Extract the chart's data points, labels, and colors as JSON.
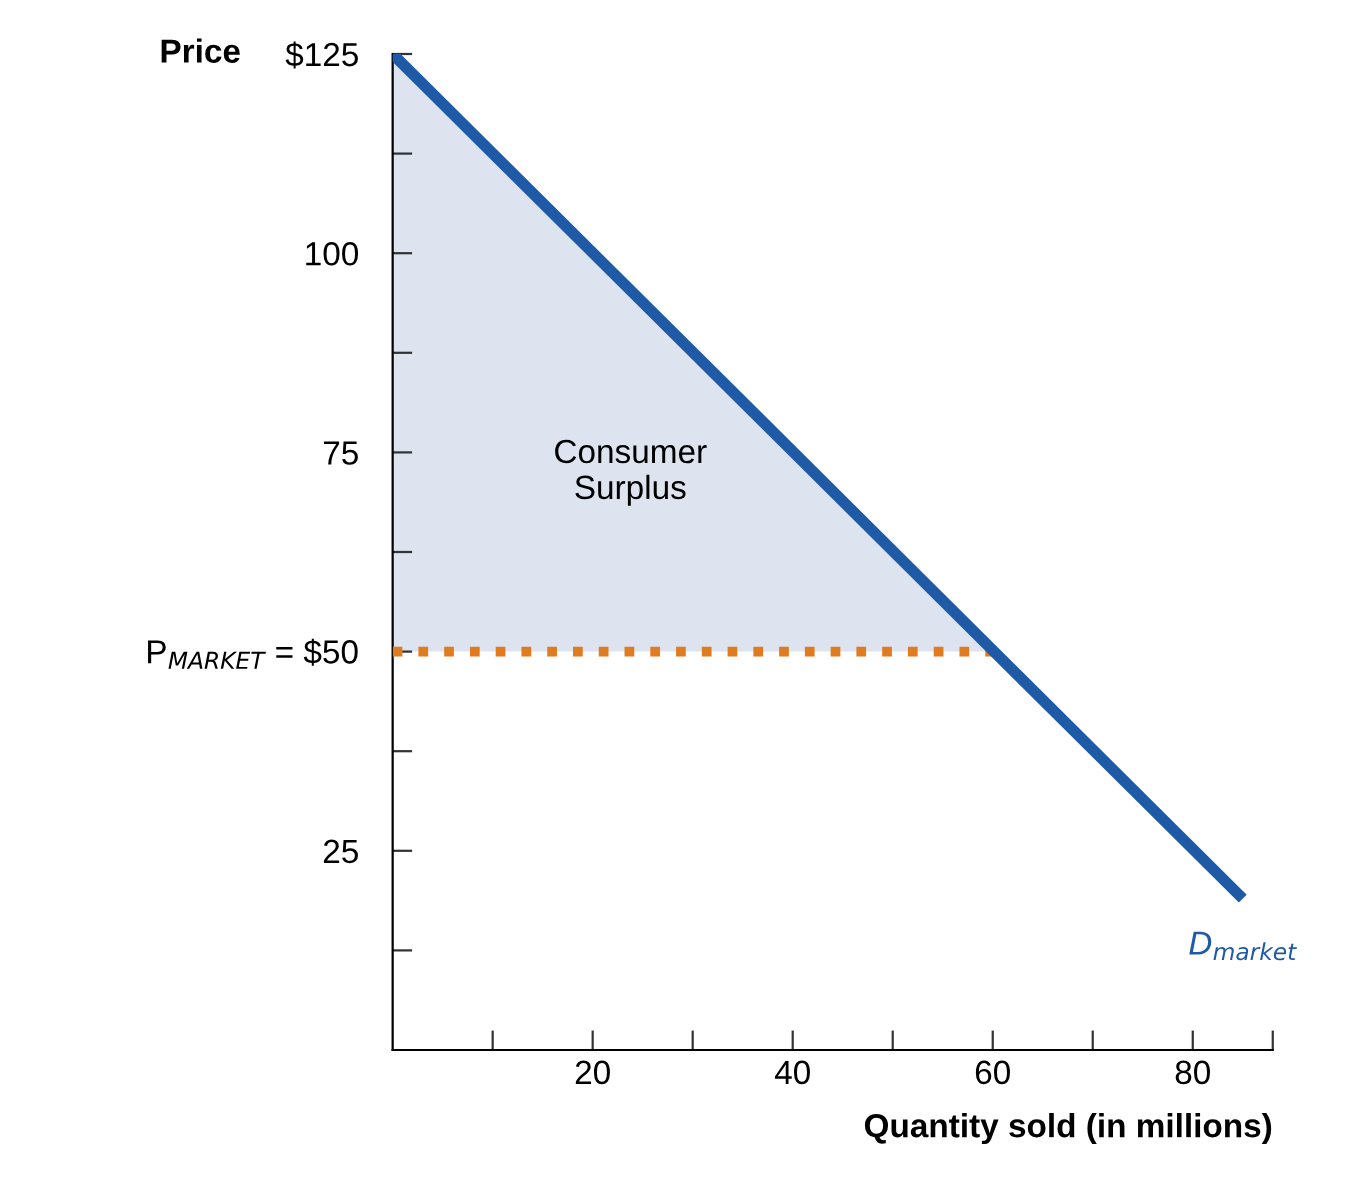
{
  "chart_data": {
    "type": "line",
    "xlabel": "Quantity sold (in millions)",
    "ylabel": "Price",
    "series": [
      {
        "type": "area",
        "color": "#dde4f0",
        "x": [
          0,
          60
        ],
        "values": [
          125,
          50
        ]
      },
      {
        "color": "#e07b20",
        "x": [
          0,
          60
        ],
        "values": [
          50,
          50
        ],
        "line_style": "dotted"
      },
      {
        "name": "D$_{market}$",
        "color": "#1f5aa6",
        "x": [
          0,
          85
        ],
        "values": [
          125,
          19
        ],
        "line_style": "solid"
      }
    ],
    "annotations": [
      "Consumer\nSurplus"
    ],
    "xlim": [
      0,
      88
    ],
    "ylim": [
      0,
      125
    ],
    "xticks": [
      {
        "value": 10,
        "label": null
      },
      20,
      {
        "value": 30,
        "label": null
      },
      40,
      {
        "value": 50,
        "label": null
      },
      60,
      {
        "value": 70,
        "label": null
      },
      80,
      {
        "value": 88,
        "label": null
      }
    ],
    "yticks": [
      {
        "value": 12.5,
        "label": null
      },
      25,
      {
        "value": 37.5,
        "label": null
      },
      {
        "value": 50,
        "label": "P$_{MARKET}$ = $50"
      },
      {
        "value": 62.5,
        "label": null
      },
      75,
      {
        "value": 87.5,
        "label": null
      },
      100,
      {
        "value": 112.5,
        "label": null
      },
      {
        "value": 125,
        "label": "$125"
      }
    ],
    "grid": false,
    "legend": false
  }
}
